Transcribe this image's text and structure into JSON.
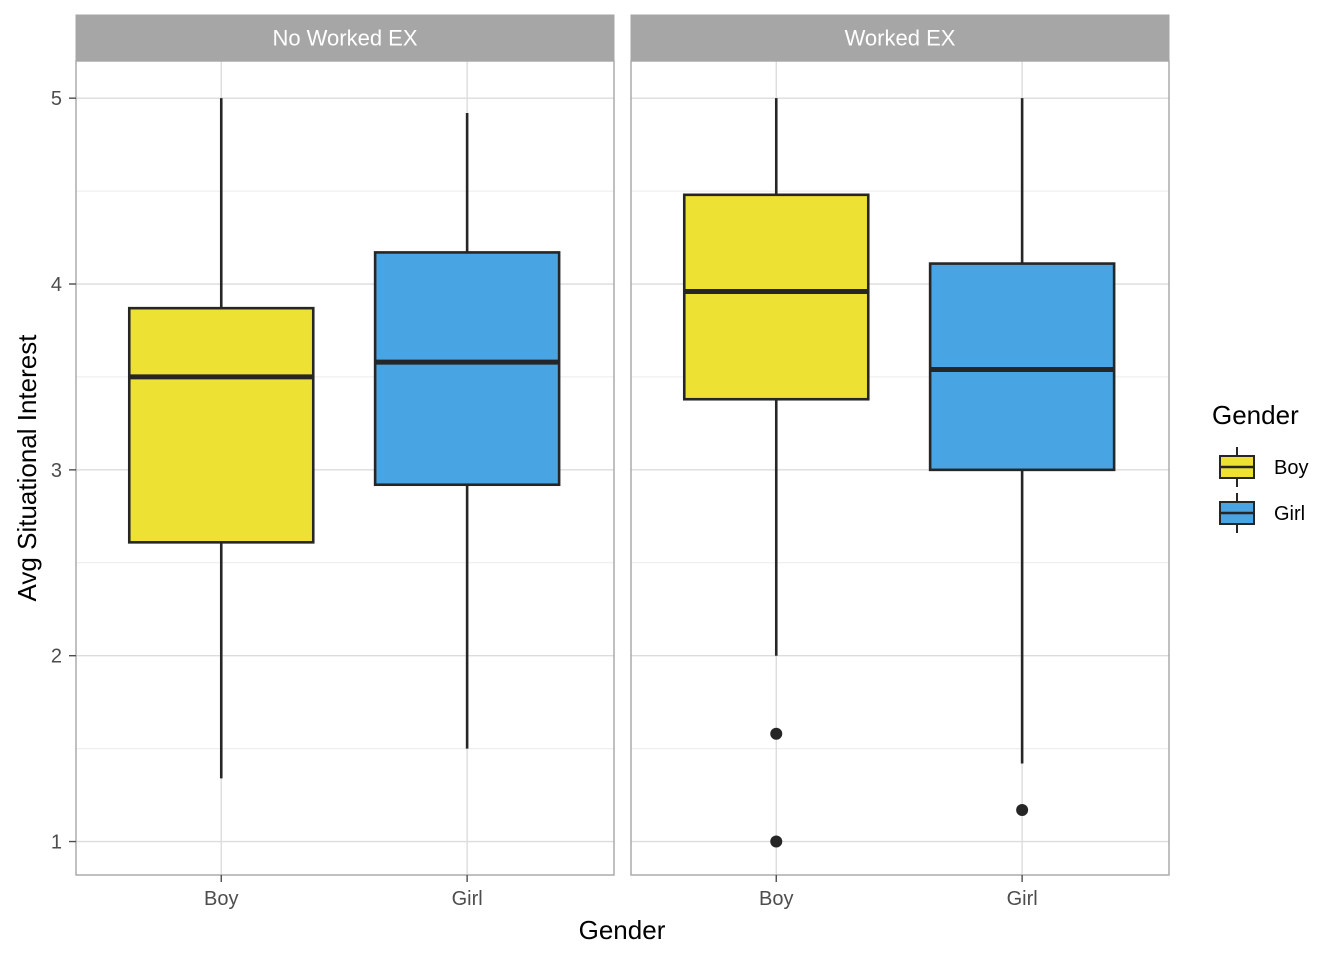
{
  "chart_data": {
    "type": "boxplot",
    "xlabel": "Gender",
    "ylabel": "Avg Situational Interest",
    "ylim": [
      0.82,
      5.2
    ],
    "yticks": [
      1,
      2,
      3,
      4,
      5
    ],
    "categories": [
      "Boy",
      "Girl"
    ],
    "grid": "major and minor",
    "legend": {
      "title": "Gender",
      "position": "right",
      "entries": [
        {
          "label": "Boy",
          "color": "#ede233"
        },
        {
          "label": "Girl",
          "color": "#48a4e2"
        }
      ]
    },
    "colors": {
      "Boy": "#ede233",
      "Girl": "#48a4e2",
      "strip": "#a6a6a6",
      "outline": "#262626"
    },
    "panels": [
      {
        "title": "No Worked EX",
        "boxes": [
          {
            "category": "Boy",
            "whisker_low": 1.34,
            "q1": 2.61,
            "median": 3.5,
            "q3": 3.87,
            "whisker_high": 5.0,
            "outliers": []
          },
          {
            "category": "Girl",
            "whisker_low": 1.5,
            "q1": 2.92,
            "median": 3.58,
            "q3": 4.17,
            "whisker_high": 4.92,
            "outliers": []
          }
        ]
      },
      {
        "title": "Worked EX",
        "boxes": [
          {
            "category": "Boy",
            "whisker_low": 2.0,
            "q1": 3.38,
            "median": 3.96,
            "q3": 4.48,
            "whisker_high": 5.0,
            "outliers": [
              1.58,
              1.0
            ]
          },
          {
            "category": "Girl",
            "whisker_low": 1.42,
            "q1": 3.0,
            "median": 3.54,
            "q3": 4.11,
            "whisker_high": 5.0,
            "outliers": [
              1.17
            ]
          }
        ]
      }
    ]
  }
}
